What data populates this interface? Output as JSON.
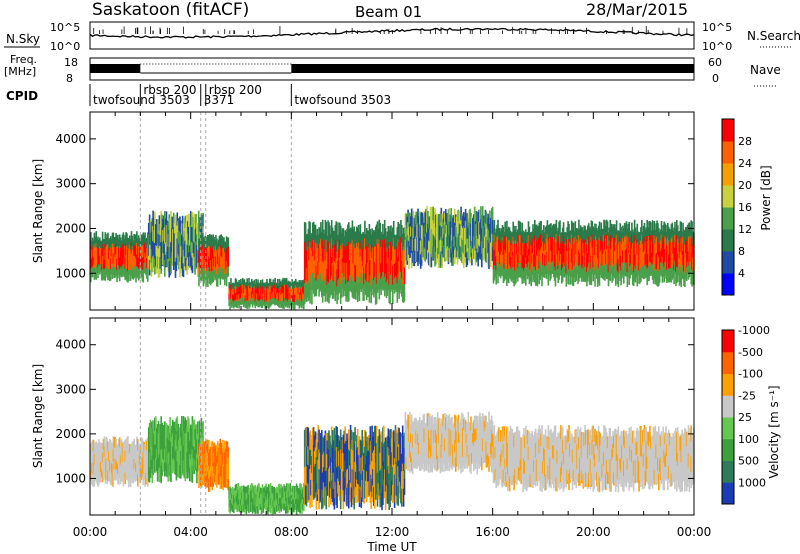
{
  "header": {
    "station": "Saskatoon (fitACF)",
    "beam": "Beam 01",
    "date": "28/Mar/2015"
  },
  "status_panels": {
    "nsky_label": "N.Sky",
    "nsearch_label": "N.Search",
    "nsky_ticks": [
      "10^5",
      "10^0"
    ],
    "nsearch_ticks": [
      "10^5",
      "10^0"
    ],
    "freq_label_1": "Freq.",
    "freq_label_2": "[MHz]",
    "freq_ticks": [
      "18",
      "8"
    ],
    "nave_label": "Nave",
    "nave_ticks": [
      "60",
      "0"
    ],
    "cpid_label": "CPID",
    "cpid_segments": [
      {
        "name": "twofsound",
        "id": "3503",
        "start_h": 0.0,
        "end_h": 2.0
      },
      {
        "name": "rbsp",
        "id": "200",
        "start_h": 2.0,
        "end_h": 4.4
      },
      {
        "name": "",
        "id": "3371",
        "start_h": 4.4,
        "end_h": 4.6
      },
      {
        "name": "rbsp",
        "id": "200",
        "start_h": 4.6,
        "end_h": 8.0
      },
      {
        "name": "twofsound",
        "id": "3503",
        "start_h": 8.0,
        "end_h": 24.0
      }
    ]
  },
  "chart_data": [
    {
      "type": "heatmap",
      "quantity": "Power",
      "ylabel": "Slant Range [km]",
      "xlabel": "Time UT",
      "x_range_h": [
        0,
        24
      ],
      "ylim": [
        180,
        4600
      ],
      "y_ticks": [
        1000,
        2000,
        3000,
        4000
      ],
      "x_ticks": [
        "00:00",
        "04:00",
        "08:00",
        "12:00",
        "16:00",
        "20:00",
        "00:00"
      ],
      "colorbar": {
        "label": "Power [dB]",
        "ticks": [
          "4",
          "8",
          "12",
          "16",
          "20",
          "24",
          "28"
        ],
        "colors": [
          "#0000ff",
          "#1f4aa8",
          "#2a7a4a",
          "#4aa04a",
          "#c8d23c",
          "#f5a000",
          "#ff6000",
          "#ff0000"
        ]
      },
      "echo_bands": [
        {
          "t_start": 0.0,
          "t_end": 2.3,
          "range_low": 800,
          "range_high": 1950,
          "level": "high"
        },
        {
          "t_start": 2.3,
          "t_end": 4.5,
          "range_low": 900,
          "range_high": 2400,
          "level": "mid"
        },
        {
          "t_start": 4.3,
          "t_end": 5.5,
          "range_low": 700,
          "range_high": 1900,
          "level": "high"
        },
        {
          "t_start": 5.5,
          "t_end": 8.5,
          "range_low": 200,
          "range_high": 900,
          "level": "high"
        },
        {
          "t_start": 8.5,
          "t_end": 12.5,
          "range_low": 300,
          "range_high": 2200,
          "level": "high"
        },
        {
          "t_start": 12.5,
          "t_end": 16.0,
          "range_low": 1100,
          "range_high": 2500,
          "level": "mid"
        },
        {
          "t_start": 16.0,
          "t_end": 24.0,
          "range_low": 700,
          "range_high": 2200,
          "level": "high"
        }
      ]
    },
    {
      "type": "heatmap",
      "quantity": "Velocity",
      "ylabel": "Slant Range [km]",
      "xlabel": "Time UT",
      "x_range_h": [
        0,
        24
      ],
      "ylim": [
        180,
        4600
      ],
      "y_ticks": [
        1000,
        2000,
        3000,
        4000
      ],
      "x_ticks": [
        "00:00",
        "04:00",
        "08:00",
        "12:00",
        "16:00",
        "20:00",
        "00:00"
      ],
      "colorbar": {
        "label": "Velocity [m s⁻¹]",
        "ticks": [
          "1000",
          "500",
          "100",
          "25",
          "-25",
          "-100",
          "-500",
          "-1000"
        ],
        "colors": [
          "#1a3cb4",
          "#2e7a5a",
          "#3ca03c",
          "#64c850",
          "#c8c8c8",
          "#ffa000",
          "#ff6400",
          "#ff0000"
        ]
      },
      "echo_bands": [
        {
          "t_start": 0.0,
          "t_end": 2.3,
          "range_low": 800,
          "range_high": 1950,
          "level": "ground"
        },
        {
          "t_start": 2.3,
          "t_end": 4.5,
          "range_low": 900,
          "range_high": 2400,
          "level": "pos"
        },
        {
          "t_start": 4.3,
          "t_end": 5.5,
          "range_low": 700,
          "range_high": 1900,
          "level": "neg"
        },
        {
          "t_start": 5.5,
          "t_end": 8.5,
          "range_low": 200,
          "range_high": 900,
          "level": "pos"
        },
        {
          "t_start": 8.5,
          "t_end": 12.5,
          "range_low": 300,
          "range_high": 2200,
          "level": "mixed"
        },
        {
          "t_start": 12.5,
          "t_end": 16.0,
          "range_low": 1100,
          "range_high": 2500,
          "level": "ground"
        },
        {
          "t_start": 16.0,
          "t_end": 24.0,
          "range_low": 700,
          "range_high": 2200,
          "level": "ground"
        }
      ]
    }
  ]
}
